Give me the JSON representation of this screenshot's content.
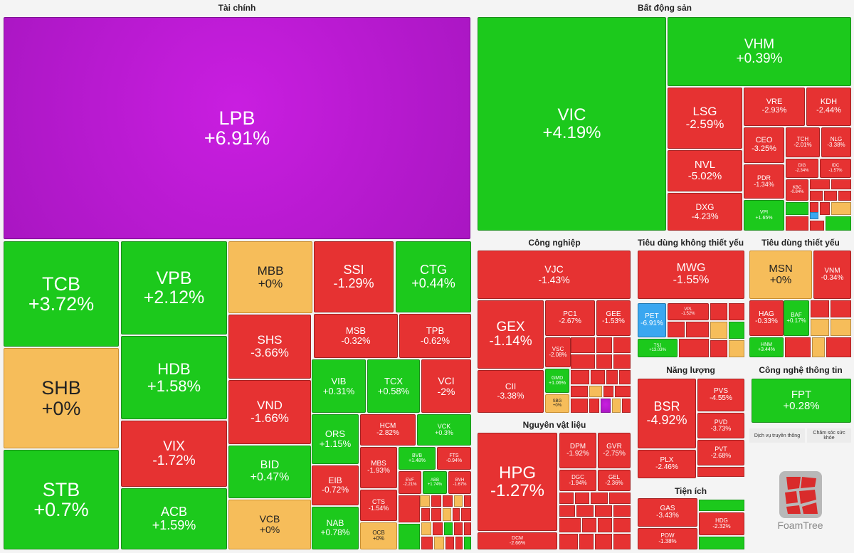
{
  "chart_data": {
    "type": "treemap",
    "title": "",
    "sectors": [
      {
        "name": "Tài chính",
        "stocks": [
          {
            "ticker": "LPB",
            "change": "+6.91%"
          },
          {
            "ticker": "TCB",
            "change": "+3.72%"
          },
          {
            "ticker": "SHB",
            "change": "+0%"
          },
          {
            "ticker": "STB",
            "change": "+0.7%"
          },
          {
            "ticker": "VPB",
            "change": "+2.12%"
          },
          {
            "ticker": "HDB",
            "change": "+1.58%"
          },
          {
            "ticker": "VIX",
            "change": "-1.72%"
          },
          {
            "ticker": "ACB",
            "change": "+1.59%"
          },
          {
            "ticker": "MBB",
            "change": "+0%"
          },
          {
            "ticker": "SHS",
            "change": "-3.66%"
          },
          {
            "ticker": "VND",
            "change": "-1.66%"
          },
          {
            "ticker": "BID",
            "change": "+0.47%"
          },
          {
            "ticker": "VCB",
            "change": "+0%"
          },
          {
            "ticker": "SSI",
            "change": "-1.29%"
          },
          {
            "ticker": "CTG",
            "change": "+0.44%"
          },
          {
            "ticker": "MSB",
            "change": "-0.32%"
          },
          {
            "ticker": "TPB",
            "change": "-0.62%"
          },
          {
            "ticker": "VIB",
            "change": "+0.31%"
          },
          {
            "ticker": "TCX",
            "change": "+0.58%"
          },
          {
            "ticker": "VCI",
            "change": "-2%"
          },
          {
            "ticker": "ORS",
            "change": "+1.15%"
          },
          {
            "ticker": "EIB",
            "change": "-0.72%"
          },
          {
            "ticker": "NAB",
            "change": "+0.78%"
          },
          {
            "ticker": "HCM",
            "change": "-2.82%"
          },
          {
            "ticker": "VCK",
            "change": "+0.3%"
          },
          {
            "ticker": "MBS",
            "change": "-1.93%"
          },
          {
            "ticker": "CTS",
            "change": "-1.54%"
          },
          {
            "ticker": "OCB",
            "change": "+0%"
          },
          {
            "ticker": "BVB",
            "change": "+1.48%"
          },
          {
            "ticker": "FTS",
            "change": "-0.94%"
          },
          {
            "ticker": "EVF",
            "change": "-2.21%"
          },
          {
            "ticker": "ABB",
            "change": "+1.74%"
          },
          {
            "ticker": "BVH",
            "change": "-1.67%"
          }
        ]
      },
      {
        "name": "Bất động sản",
        "stocks": [
          {
            "ticker": "VIC",
            "change": "+4.19%"
          },
          {
            "ticker": "VHM",
            "change": "+0.39%"
          },
          {
            "ticker": "LSG",
            "change": "-2.59%"
          },
          {
            "ticker": "VRE",
            "change": "-2.93%"
          },
          {
            "ticker": "KDH",
            "change": "-2.44%"
          },
          {
            "ticker": "CEO",
            "change": "-3.25%"
          },
          {
            "ticker": "TCH",
            "change": "-2.01%"
          },
          {
            "ticker": "NLG",
            "change": "-3.38%"
          },
          {
            "ticker": "NVL",
            "change": "-5.02%"
          },
          {
            "ticker": "DIG",
            "change": "-2.34%"
          },
          {
            "ticker": "IDC",
            "change": "-1.57%"
          },
          {
            "ticker": "PDR",
            "change": "-1.34%"
          },
          {
            "ticker": "KBC",
            "change": "-0.84%"
          },
          {
            "ticker": "DXG",
            "change": "-4.23%"
          },
          {
            "ticker": "VPI",
            "change": "+1.65%"
          }
        ]
      },
      {
        "name": "Công nghiệp",
        "stocks": [
          {
            "ticker": "VJC",
            "change": "-1.43%"
          },
          {
            "ticker": "GEX",
            "change": "-1.14%"
          },
          {
            "ticker": "PC1",
            "change": "-2.67%"
          },
          {
            "ticker": "GEE",
            "change": "-1.53%"
          },
          {
            "ticker": "VSC",
            "change": "-2.08%"
          },
          {
            "ticker": "CII",
            "change": "-3.38%"
          },
          {
            "ticker": "GMD",
            "change": "+1.06%"
          },
          {
            "ticker": "SBG",
            "change": "+0%"
          }
        ]
      },
      {
        "name": "Tiêu dùng không thiết yếu",
        "stocks": [
          {
            "ticker": "MWG",
            "change": "-1.55%"
          },
          {
            "ticker": "PET",
            "change": "-6.91%"
          },
          {
            "ticker": "VPL",
            "change": "-1.52%"
          },
          {
            "ticker": "TSJ",
            "change": "+13.03%"
          }
        ]
      },
      {
        "name": "Tiêu dùng thiết yếu",
        "stocks": [
          {
            "ticker": "MSN",
            "change": "+0%"
          },
          {
            "ticker": "VNM",
            "change": "-0.34%"
          },
          {
            "ticker": "HAG",
            "change": "-0.33%"
          },
          {
            "ticker": "BAF",
            "change": "+0.17%"
          },
          {
            "ticker": "HNM",
            "change": "+3.44%"
          }
        ]
      },
      {
        "name": "Năng lượng",
        "stocks": [
          {
            "ticker": "BSR",
            "change": "-4.92%"
          },
          {
            "ticker": "PVS",
            "change": "-4.55%"
          },
          {
            "ticker": "PVD",
            "change": "-3.73%"
          },
          {
            "ticker": "PLX",
            "change": "-2.46%"
          },
          {
            "ticker": "PVT",
            "change": "-2.68%"
          }
        ]
      },
      {
        "name": "Công nghệ thông tin",
        "stocks": [
          {
            "ticker": "FPT",
            "change": "+0.28%"
          }
        ]
      },
      {
        "name": "Nguyên vật liệu",
        "stocks": [
          {
            "ticker": "HPG",
            "change": "-1.27%"
          },
          {
            "ticker": "DPM",
            "change": "-1.92%"
          },
          {
            "ticker": "GVR",
            "change": "-2.75%"
          },
          {
            "ticker": "DGC",
            "change": "-1.94%"
          },
          {
            "ticker": "GEL",
            "change": "-2.36%"
          },
          {
            "ticker": "DCM",
            "change": "-2.66%"
          }
        ]
      },
      {
        "name": "Tiện ích",
        "stocks": [
          {
            "ticker": "GAS",
            "change": "-3.43%"
          },
          {
            "ticker": "HDG",
            "change": "-2.32%"
          },
          {
            "ticker": "POW",
            "change": "-1.38%"
          }
        ]
      }
    ],
    "other_labels": {
      "telecom": "Dịch vụ truyền thông",
      "health": "Chăm sóc sức khỏe",
      "brand": "FoamTree"
    },
    "colors": {
      "up": "#1cc91c",
      "down": "#e63232",
      "flat": "#f6bd5a",
      "ceiling": "#c41bdc",
      "floor": "#3aa7f0"
    }
  }
}
